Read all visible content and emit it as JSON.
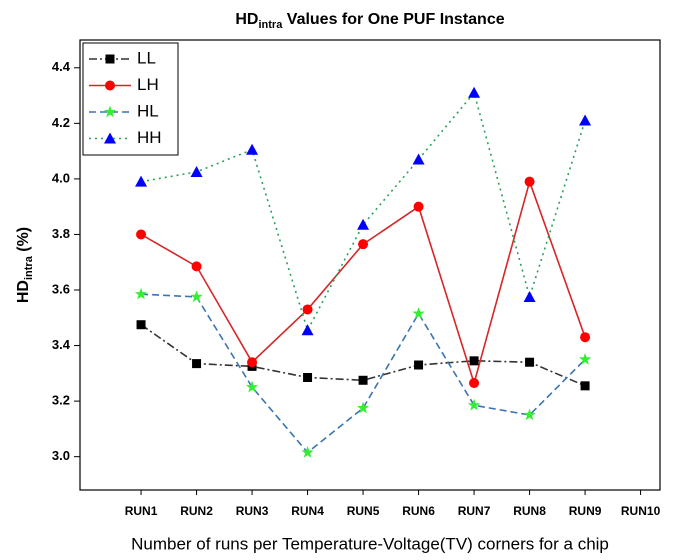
{
  "chart_data": {
    "type": "line",
    "title": [
      "HD",
      "intra",
      " Values for One PUF Instance"
    ],
    "y_label": [
      "HD",
      "intra",
      " (%)"
    ],
    "x_label": "Number of runs per Temperature-Voltage(TV) corners for a chip",
    "categories": [
      "RUN1",
      "RUN2",
      "RUN3",
      "RUN4",
      "RUN5",
      "RUN6",
      "RUN7",
      "RUN8",
      "RUN9",
      "RUN10"
    ],
    "series": [
      {
        "name": "LL",
        "color": "#333333",
        "marker_color": "#000000",
        "marker": "square",
        "dash": "8 3 2 3",
        "values": [
          3.475,
          3.335,
          3.325,
          3.285,
          3.275,
          3.33,
          3.345,
          3.34,
          3.255,
          null
        ]
      },
      {
        "name": "LH",
        "color": "#d62728",
        "marker_color": "#ff0000",
        "marker": "circle",
        "dash": "none",
        "values": [
          3.8,
          3.685,
          3.34,
          3.53,
          3.765,
          3.9,
          3.265,
          3.99,
          3.43,
          null
        ]
      },
      {
        "name": "HL",
        "color": "#3b75af",
        "marker_color": "#33ee33",
        "marker": "star",
        "dash": "7 4",
        "values": [
          3.585,
          3.575,
          3.25,
          3.015,
          3.175,
          3.515,
          3.185,
          3.15,
          3.35,
          null
        ]
      },
      {
        "name": "HH",
        "color": "#2ca05a",
        "marker_color": "#0000ff",
        "marker": "triangle",
        "dash": "2 4",
        "values": [
          3.99,
          4.025,
          4.105,
          3.455,
          3.835,
          4.07,
          4.31,
          3.575,
          4.21,
          null
        ]
      }
    ],
    "ylim": [
      2.88,
      4.5
    ],
    "yticks": [
      {
        "value": 3.0,
        "label": "3.0"
      },
      3.2,
      3.4,
      3.6,
      3.8,
      {
        "value": 4.0,
        "label": "4.0"
      },
      4.2,
      4.4
    ],
    "legend": "top-left",
    "grid": false
  }
}
